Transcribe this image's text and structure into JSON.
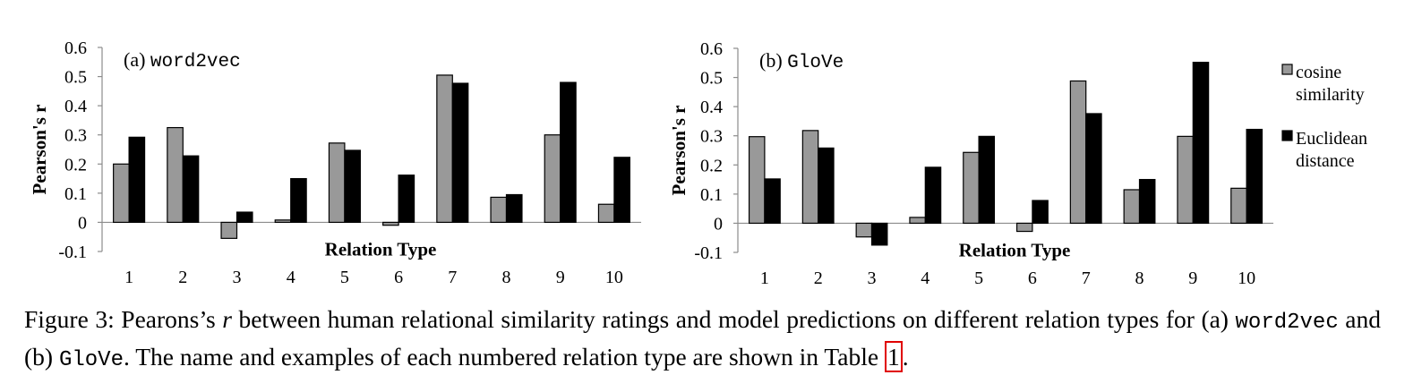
{
  "chart_data": [
    {
      "type": "bar",
      "title": "(a)",
      "title_model": "word2vec",
      "xlabel": "Relation Type",
      "ylabel": "Pearson's r",
      "ylim": [
        -0.1,
        0.6
      ],
      "yticks": [
        "0.6",
        "0.5",
        "0.4",
        "0.3",
        "0.2",
        "0.1",
        "0",
        "-0.1"
      ],
      "categories": [
        "1",
        "2",
        "3",
        "4",
        "5",
        "6",
        "7",
        "8",
        "9",
        "10"
      ],
      "series": [
        {
          "name": "cosine similarity",
          "color": "#999999",
          "values": [
            0.2,
            0.325,
            -0.055,
            0.008,
            0.272,
            -0.01,
            0.505,
            0.086,
            0.3,
            0.062
          ]
        },
        {
          "name": "Euclidean distance",
          "color": "#000000",
          "values": [
            0.292,
            0.228,
            0.035,
            0.15,
            0.247,
            0.162,
            0.477,
            0.095,
            0.48,
            0.223
          ]
        }
      ]
    },
    {
      "type": "bar",
      "title": "(b)",
      "title_model": "GloVe",
      "xlabel": "Relation Type",
      "ylabel": "Pearson's r",
      "ylim": [
        -0.1,
        0.6
      ],
      "yticks": [
        "0.6",
        "0.5",
        "0.4",
        "0.3",
        "0.2",
        "0.1",
        "0",
        "-0.1"
      ],
      "categories": [
        "1",
        "2",
        "3",
        "4",
        "5",
        "6",
        "7",
        "8",
        "9",
        "10"
      ],
      "series": [
        {
          "name": "cosine similarity",
          "color": "#999999",
          "values": [
            0.297,
            0.318,
            -0.047,
            0.02,
            0.243,
            -0.028,
            0.488,
            0.115,
            0.298,
            0.12
          ]
        },
        {
          "name": "Euclidean distance",
          "color": "#000000",
          "values": [
            0.152,
            0.258,
            -0.075,
            0.192,
            0.298,
            0.078,
            0.376,
            0.15,
            0.552,
            0.322
          ]
        }
      ]
    }
  ],
  "legend": {
    "placement": "right",
    "items": [
      {
        "line1": "cosine",
        "line2": "similarity",
        "color": "#999999"
      },
      {
        "line1": "Euclidean",
        "line2": "distance",
        "color": "#000000"
      }
    ]
  },
  "caption": {
    "p1": "Figure 3:  Pearons’s ",
    "r": "r",
    "p2": " between human relational similarity ratings and model predictions on different relation types for (a) ",
    "code1": "word2vec",
    "p3": " and (b) ",
    "code2": "GloVe",
    "p4": ". The name and examples of each numbered relation type are shown in Table ",
    "ref": "1",
    "p5": "."
  }
}
